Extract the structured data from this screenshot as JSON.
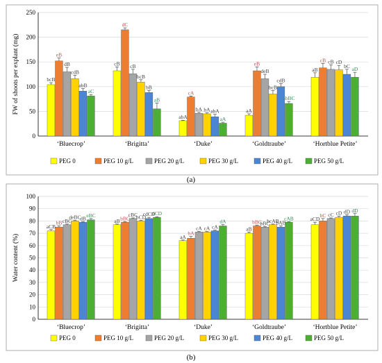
{
  "chart_data": [
    {
      "type": "bar",
      "panel_label": "(a)",
      "ylabel": "FW of shoots per explant (mg)",
      "ylim": [
        0,
        250
      ],
      "yticks": [
        0,
        50,
        100,
        150,
        200,
        250
      ],
      "grid": true,
      "legend_position": "bottom",
      "categories": [
        "‘Bluecrop’",
        "‘Brigitta’",
        "‘Duke’",
        "‘Goldtraube’",
        "‘Hortblue Petite’"
      ],
      "series": [
        {
          "name": "PEG 0",
          "color": "#ffff00",
          "values": [
            104,
            132,
            31,
            42,
            119
          ],
          "errors": [
            4,
            8,
            1,
            3,
            9
          ],
          "labels": [
            "bcB",
            "cB",
            "abA",
            "aA",
            "aB"
          ]
        },
        {
          "name": "PEG 10 g/L",
          "color": "#ed7d31",
          "values": [
            152,
            215,
            79,
            132,
            138
          ],
          "errors": [
            6,
            4,
            2,
            8,
            9
          ],
          "labels": [
            "eB",
            "dC",
            "cA",
            "eB",
            "cB"
          ]
        },
        {
          "name": "PEG 20 g/L",
          "color": "#a5a5a5",
          "values": [
            130,
            126,
            46,
            116,
            135
          ],
          "errors": [
            9,
            9,
            2,
            9,
            9
          ],
          "labels": [
            "dB",
            "cB",
            "bA",
            "deB",
            "cB"
          ]
        },
        {
          "name": "PEG 30 g/L",
          "color": "#ffd200",
          "values": [
            116,
            109,
            45,
            85,
            134
          ],
          "errors": [
            7,
            5,
            2,
            7,
            9
          ],
          "labels": [
            "cdB",
            "bcB",
            "bA",
            "bcB",
            "cD"
          ]
        },
        {
          "name": "PEG 40 g/L",
          "color": "#4a86d4",
          "values": [
            91,
            88,
            39,
            100,
            125
          ],
          "errors": [
            5,
            4,
            5,
            6,
            10
          ],
          "labels": [
            "abB",
            "bB",
            "abA",
            "cdB",
            "bC"
          ]
        },
        {
          "name": "PEG 50 g/L",
          "color": "#4cae33",
          "values": [
            81,
            55,
            26,
            66,
            119
          ],
          "errors": [
            3,
            12,
            2,
            4,
            10
          ],
          "labels": [
            "aC",
            "aB",
            "aA",
            "abBC",
            "aD"
          ]
        }
      ]
    },
    {
      "type": "bar",
      "panel_label": "(b)",
      "ylabel": "Water content (%)",
      "ylim": [
        0,
        100
      ],
      "yticks": [
        0,
        10,
        20,
        30,
        40,
        50,
        60,
        70,
        80,
        90,
        100
      ],
      "grid": true,
      "legend_position": "bottom",
      "categories": [
        "‘Bluecrop’",
        "‘Brigitta’",
        "‘Duke’",
        "‘Goldtraube’",
        "‘Hortblue Petite’"
      ],
      "series": [
        {
          "name": "PEG 0",
          "color": "#ffff00",
          "values": [
            72,
            77,
            64,
            70,
            77
          ],
          "errors": [
            1,
            0.5,
            0.5,
            1,
            2
          ],
          "labels": [
            "aCB",
            "aB",
            "aA",
            "aB",
            "aCD"
          ]
        },
        {
          "name": "PEG 10 g/L",
          "color": "#ed7d31",
          "values": [
            75,
            79,
            66,
            76,
            80
          ],
          "errors": [
            1,
            0.5,
            1.5,
            0.5,
            2
          ],
          "labels": [
            "bB",
            "bBC",
            "bA",
            "bBC",
            "bC"
          ]
        },
        {
          "name": "PEG 20 g/L",
          "color": "#a5a5a5",
          "values": [
            77,
            82,
            71,
            75,
            82
          ],
          "errors": [
            0.5,
            0.5,
            0.5,
            0.5,
            0.5
          ],
          "labels": [
            "cBC",
            "cBC",
            "cA",
            "bBC",
            "cC"
          ]
        },
        {
          "name": "PEG 30 g/L",
          "color": "#ffd200",
          "values": [
            80,
            80,
            71,
            77,
            83
          ],
          "errors": [
            0.5,
            0.5,
            0.5,
            0.5,
            1
          ],
          "labels": [
            "deBC",
            "bCD",
            "cA",
            "bcAB",
            "cD"
          ]
        },
        {
          "name": "PEG 40 g/L",
          "color": "#4a86d4",
          "values": [
            79,
            82,
            72,
            75,
            84
          ],
          "errors": [
            0.5,
            1,
            0.5,
            1,
            1
          ],
          "labels": [
            "dB",
            "cdCD",
            "cA",
            "bAB",
            "dD"
          ]
        },
        {
          "name": "PEG 50 g/L",
          "color": "#4cae33",
          "values": [
            81,
            83,
            76,
            79,
            84
          ],
          "errors": [
            1,
            0.5,
            1,
            0.5,
            2
          ],
          "labels": [
            "eBC",
            "dCD",
            "dA",
            "cAB",
            "dD"
          ]
        }
      ]
    }
  ]
}
